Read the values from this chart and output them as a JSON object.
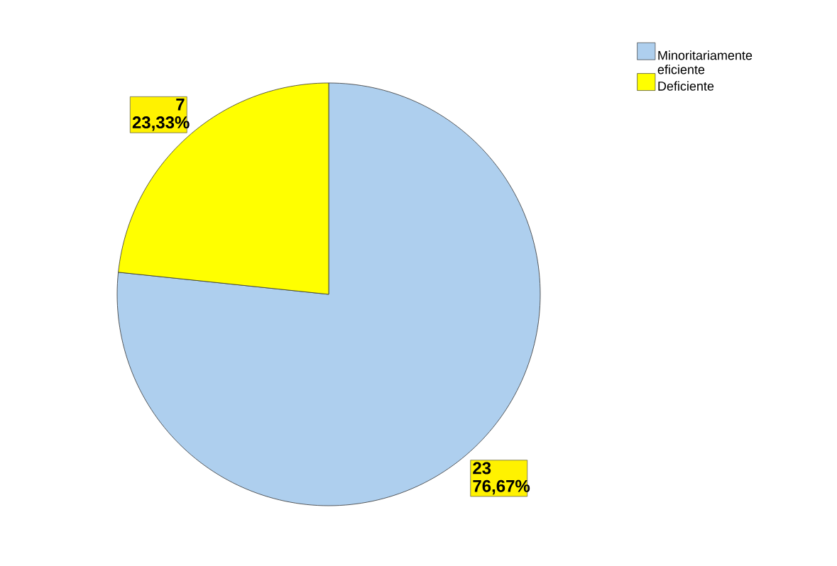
{
  "chart_data": {
    "type": "pie",
    "categories": [
      "Minoritariamente eficiente",
      "Deficiente"
    ],
    "values": [
      23,
      7
    ],
    "colors": [
      "#aecfee",
      "#ffff00"
    ],
    "value_labels": [
      "23 76,67%",
      "7 23,33%"
    ],
    "legend": "top right"
  }
}
